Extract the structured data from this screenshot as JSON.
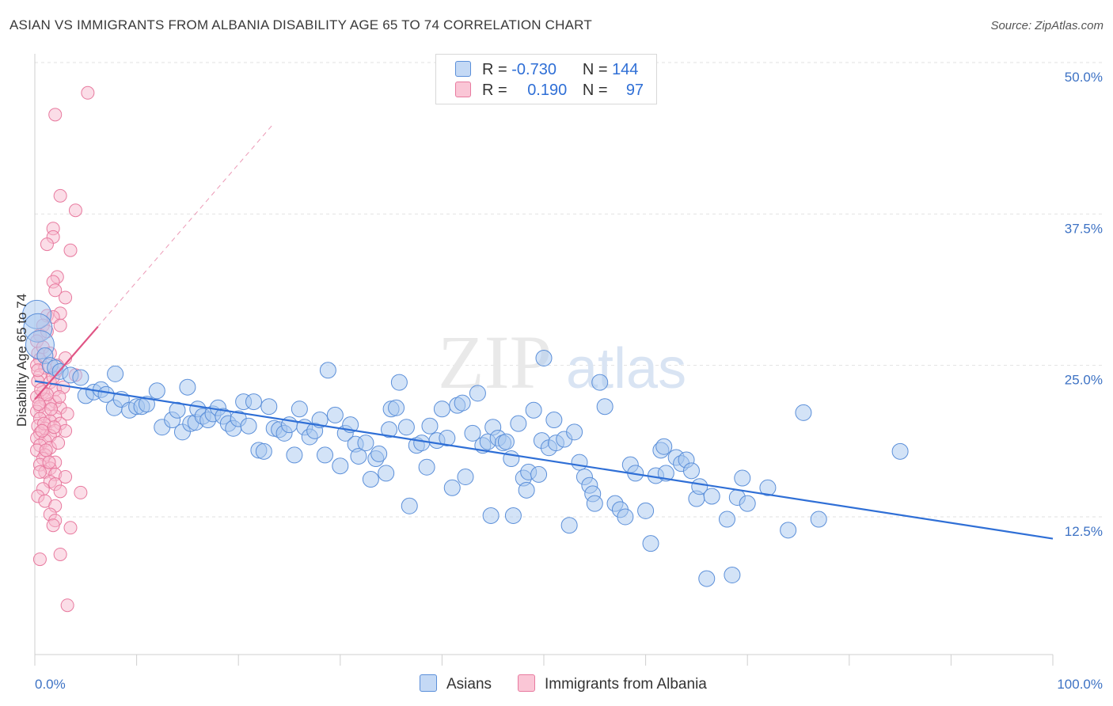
{
  "title": "ASIAN VS IMMIGRANTS FROM ALBANIA DISABILITY AGE 65 TO 74 CORRELATION CHART",
  "source": "Source: ZipAtlas.com",
  "watermark": {
    "zip": "ZIP",
    "atlas": "atlas"
  },
  "legend_stats": [
    {
      "r_label": "R =",
      "r_value": "-0.730",
      "n_label": "N =",
      "n_value": "144"
    },
    {
      "r_label": "R =",
      "r_value": "0.190",
      "n_label": "N =",
      "n_value": "97"
    }
  ],
  "colors": {
    "asians_fill": "#a8c8f0",
    "asians_stroke": "#5b8fd9",
    "asians_line": "#2f6fd6",
    "albania_fill": "#f8bcd0",
    "albania_stroke": "#e87a9f",
    "albania_line": "#e05585",
    "grid": "#e2e2e2",
    "tick_text": "#3d72c4"
  },
  "chart_data": {
    "type": "scatter",
    "title": "ASIAN VS IMMIGRANTS FROM ALBANIA DISABILITY AGE 65 TO 74 CORRELATION CHART",
    "xlabel": "",
    "ylabel": "Disability Age 65 to 74",
    "xlim": [
      0,
      100
    ],
    "ylim": [
      0,
      52
    ],
    "x_tick_labels": [
      "0.0%",
      "100.0%"
    ],
    "y_ticks": [
      12.5,
      25.0,
      37.5,
      50.0
    ],
    "y_tick_labels": [
      "12.5%",
      "25.0%",
      "37.5%",
      "50.0%"
    ],
    "grid": true,
    "legend_position": "bottom",
    "series": [
      {
        "name": "Asians",
        "trend": {
          "x": [
            0,
            100
          ],
          "y": [
            23.7,
            10.7
          ]
        },
        "points": [
          [
            0.2,
            29.2
          ],
          [
            0.3,
            28.1
          ],
          [
            0.5,
            26.7
          ],
          [
            1.0,
            25.8
          ],
          [
            1.5,
            25.0
          ],
          [
            2.0,
            24.8
          ],
          [
            2.5,
            24.5
          ],
          [
            3.5,
            24.2
          ],
          [
            4.5,
            24.0
          ],
          [
            5.0,
            22.5
          ],
          [
            5.8,
            22.8
          ],
          [
            6.5,
            23.0
          ],
          [
            7.0,
            22.6
          ],
          [
            7.8,
            21.5
          ],
          [
            8.5,
            22.2
          ],
          [
            9.3,
            21.3
          ],
          [
            10.0,
            21.6
          ],
          [
            10.5,
            21.6
          ],
          [
            11.0,
            21.8
          ],
          [
            7.9,
            24.3
          ],
          [
            12.0,
            22.9
          ],
          [
            12.5,
            19.9
          ],
          [
            13.5,
            20.5
          ],
          [
            14.0,
            21.3
          ],
          [
            14.5,
            19.5
          ],
          [
            15.0,
            23.2
          ],
          [
            15.3,
            20.2
          ],
          [
            15.8,
            20.3
          ],
          [
            16.0,
            21.4
          ],
          [
            16.5,
            20.8
          ],
          [
            17.0,
            20.5
          ],
          [
            17.5,
            21.0
          ],
          [
            18.0,
            21.5
          ],
          [
            18.5,
            20.8
          ],
          [
            19.0,
            20.2
          ],
          [
            19.5,
            19.8
          ],
          [
            20.0,
            20.6
          ],
          [
            20.5,
            22.0
          ],
          [
            21.0,
            20.0
          ],
          [
            21.5,
            22.0
          ],
          [
            22.0,
            18.0
          ],
          [
            22.5,
            17.9
          ],
          [
            23.0,
            21.6
          ],
          [
            23.5,
            19.8
          ],
          [
            24.0,
            19.7
          ],
          [
            24.5,
            19.4
          ],
          [
            25.0,
            20.1
          ],
          [
            25.5,
            17.6
          ],
          [
            26.0,
            21.4
          ],
          [
            26.5,
            19.9
          ],
          [
            27.0,
            19.1
          ],
          [
            27.5,
            19.6
          ],
          [
            28.0,
            20.5
          ],
          [
            28.5,
            17.6
          ],
          [
            28.8,
            24.6
          ],
          [
            29.5,
            20.9
          ],
          [
            30.0,
            16.7
          ],
          [
            30.5,
            19.4
          ],
          [
            31.0,
            20.1
          ],
          [
            31.5,
            18.5
          ],
          [
            31.8,
            17.5
          ],
          [
            32.5,
            18.6
          ],
          [
            33.0,
            15.6
          ],
          [
            33.5,
            17.3
          ],
          [
            33.8,
            17.7
          ],
          [
            34.5,
            16.1
          ],
          [
            34.8,
            19.7
          ],
          [
            35.0,
            21.4
          ],
          [
            35.5,
            21.5
          ],
          [
            35.8,
            23.6
          ],
          [
            36.5,
            19.9
          ],
          [
            36.8,
            13.4
          ],
          [
            37.5,
            18.4
          ],
          [
            38.0,
            18.6
          ],
          [
            38.5,
            16.6
          ],
          [
            38.8,
            20.0
          ],
          [
            39.5,
            18.8
          ],
          [
            40.0,
            21.4
          ],
          [
            40.5,
            19.0
          ],
          [
            41.0,
            14.9
          ],
          [
            41.5,
            21.7
          ],
          [
            42.0,
            21.9
          ],
          [
            42.3,
            15.8
          ],
          [
            43.0,
            19.4
          ],
          [
            43.5,
            22.7
          ],
          [
            44.0,
            18.4
          ],
          [
            44.5,
            18.7
          ],
          [
            44.8,
            12.6
          ],
          [
            45.0,
            19.9
          ],
          [
            45.5,
            19.0
          ],
          [
            46.0,
            18.6
          ],
          [
            46.3,
            18.7
          ],
          [
            46.8,
            17.3
          ],
          [
            47.0,
            12.6
          ],
          [
            47.5,
            20.2
          ],
          [
            48.0,
            15.7
          ],
          [
            48.3,
            14.7
          ],
          [
            48.5,
            16.2
          ],
          [
            49.0,
            21.3
          ],
          [
            49.5,
            16.0
          ],
          [
            49.8,
            18.8
          ],
          [
            50.0,
            25.6
          ],
          [
            50.5,
            18.2
          ],
          [
            51.0,
            20.5
          ],
          [
            51.2,
            18.6
          ],
          [
            52.0,
            18.9
          ],
          [
            52.5,
            11.8
          ],
          [
            53.0,
            19.5
          ],
          [
            53.5,
            17.0
          ],
          [
            54.0,
            15.8
          ],
          [
            54.5,
            15.1
          ],
          [
            54.8,
            14.4
          ],
          [
            55.0,
            13.6
          ],
          [
            55.5,
            23.6
          ],
          [
            56.0,
            21.6
          ],
          [
            57.0,
            13.6
          ],
          [
            57.5,
            13.1
          ],
          [
            58.0,
            12.5
          ],
          [
            58.5,
            16.8
          ],
          [
            59.0,
            16.1
          ],
          [
            60.0,
            13.0
          ],
          [
            60.5,
            10.3
          ],
          [
            61.0,
            15.9
          ],
          [
            61.5,
            18.0
          ],
          [
            61.8,
            18.3
          ],
          [
            62.0,
            16.1
          ],
          [
            63.0,
            17.4
          ],
          [
            63.5,
            16.9
          ],
          [
            64.0,
            17.2
          ],
          [
            64.5,
            16.3
          ],
          [
            65.0,
            14.0
          ],
          [
            65.3,
            15.0
          ],
          [
            66.0,
            7.4
          ],
          [
            66.5,
            14.2
          ],
          [
            68.0,
            12.3
          ],
          [
            68.5,
            7.7
          ],
          [
            69.0,
            14.1
          ],
          [
            69.5,
            15.7
          ],
          [
            70.0,
            13.6
          ],
          [
            72.0,
            14.9
          ],
          [
            74.0,
            11.4
          ],
          [
            77.0,
            12.3
          ],
          [
            75.5,
            21.1
          ],
          [
            85.0,
            17.9
          ]
        ]
      },
      {
        "name": "Immigrants from Albania",
        "trend": {
          "x": [
            0,
            6.2
          ],
          "y": [
            22.2,
            28.2
          ]
        },
        "trend_extended": {
          "x": [
            0,
            23.5
          ],
          "y": [
            22.2,
            45.0
          ]
        },
        "points": [
          [
            5.2,
            47.5
          ],
          [
            2.0,
            45.7
          ],
          [
            2.5,
            39.0
          ],
          [
            4.0,
            37.8
          ],
          [
            1.8,
            36.3
          ],
          [
            1.8,
            35.6
          ],
          [
            1.2,
            35.0
          ],
          [
            3.5,
            34.5
          ],
          [
            2.2,
            32.3
          ],
          [
            1.8,
            31.9
          ],
          [
            2.0,
            31.2
          ],
          [
            3.0,
            30.6
          ],
          [
            2.5,
            29.3
          ],
          [
            1.2,
            29.1
          ],
          [
            1.8,
            29.0
          ],
          [
            0.8,
            28.3
          ],
          [
            2.5,
            28.3
          ],
          [
            0.5,
            27.5
          ],
          [
            0.3,
            26.0
          ],
          [
            0.5,
            25.5
          ],
          [
            3.0,
            25.6
          ],
          [
            0.2,
            25.0
          ],
          [
            1.0,
            24.8
          ],
          [
            2.0,
            24.4
          ],
          [
            0.5,
            24.2
          ],
          [
            4.0,
            24.2
          ],
          [
            0.3,
            23.7
          ],
          [
            1.5,
            23.6
          ],
          [
            2.0,
            23.0
          ],
          [
            0.8,
            22.8
          ],
          [
            0.2,
            22.4
          ],
          [
            1.0,
            22.2
          ],
          [
            2.0,
            22.0
          ],
          [
            1.5,
            21.8
          ],
          [
            0.5,
            21.6
          ],
          [
            2.5,
            21.5
          ],
          [
            0.2,
            21.2
          ],
          [
            1.0,
            21.0
          ],
          [
            2.0,
            20.8
          ],
          [
            0.5,
            20.6
          ],
          [
            1.5,
            20.4
          ],
          [
            2.5,
            20.2
          ],
          [
            0.3,
            20.0
          ],
          [
            1.0,
            19.8
          ],
          [
            2.0,
            19.6
          ],
          [
            3.0,
            19.6
          ],
          [
            0.5,
            19.4
          ],
          [
            1.5,
            19.2
          ],
          [
            0.2,
            19.0
          ],
          [
            1.0,
            18.8
          ],
          [
            0.5,
            18.4
          ],
          [
            1.5,
            18.2
          ],
          [
            0.2,
            18.0
          ],
          [
            1.0,
            17.6
          ],
          [
            0.8,
            17.3
          ],
          [
            2.0,
            17.0
          ],
          [
            0.5,
            16.8
          ],
          [
            1.5,
            16.5
          ],
          [
            1.0,
            16.2
          ],
          [
            2.0,
            16.0
          ],
          [
            0.5,
            16.2
          ],
          [
            3.0,
            15.8
          ],
          [
            1.5,
            15.4
          ],
          [
            2.0,
            15.2
          ],
          [
            0.8,
            14.8
          ],
          [
            2.5,
            14.6
          ],
          [
            4.5,
            14.5
          ],
          [
            0.3,
            14.2
          ],
          [
            1.0,
            13.8
          ],
          [
            2.0,
            13.4
          ],
          [
            1.5,
            12.7
          ],
          [
            2.0,
            12.2
          ],
          [
            1.8,
            11.8
          ],
          [
            3.5,
            11.6
          ],
          [
            2.5,
            9.4
          ],
          [
            0.5,
            9.0
          ],
          [
            3.2,
            5.2
          ],
          [
            0.2,
            27.0
          ],
          [
            1.2,
            27.8
          ],
          [
            0.8,
            26.5
          ],
          [
            1.5,
            26.0
          ],
          [
            2.2,
            25.0
          ],
          [
            0.3,
            24.6
          ],
          [
            1.8,
            24.0
          ],
          [
            2.8,
            23.2
          ],
          [
            0.6,
            23.0
          ],
          [
            1.2,
            22.6
          ],
          [
            2.4,
            22.4
          ],
          [
            0.4,
            21.8
          ],
          [
            1.6,
            21.4
          ],
          [
            3.2,
            21.0
          ],
          [
            0.9,
            20.2
          ],
          [
            1.9,
            19.9
          ],
          [
            0.7,
            19.6
          ],
          [
            2.3,
            18.6
          ],
          [
            1.1,
            18.0
          ],
          [
            1.4,
            17.0
          ]
        ]
      }
    ]
  },
  "bottom_legend": [
    {
      "label": "Asians"
    },
    {
      "label": "Immigrants from Albania"
    }
  ]
}
